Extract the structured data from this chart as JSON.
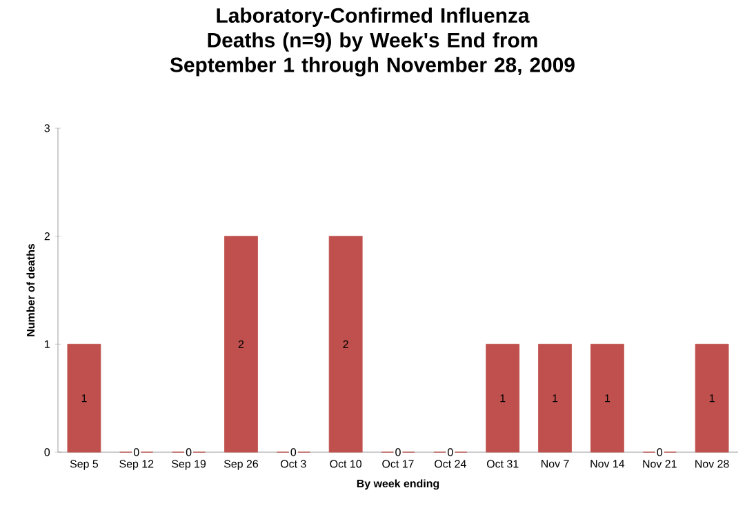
{
  "chart_data": {
    "type": "bar",
    "title": "Laboratory-Confirmed Influenza Deaths (n=9) by Week's End from September 1 through November 28, 2009",
    "xlabel": "By week ending",
    "ylabel": "Number of deaths",
    "categories": [
      "Sep 5",
      "Sep 12",
      "Sep 19",
      "Sep 26",
      "Oct 3",
      "Oct 10",
      "Oct 17",
      "Oct 24",
      "Oct 31",
      "Nov 7",
      "Nov 14",
      "Nov 21",
      "Nov 28"
    ],
    "values": [
      1,
      0,
      0,
      2,
      0,
      2,
      0,
      0,
      1,
      1,
      1,
      0,
      1
    ],
    "color": "#c0504d",
    "ylim": [
      0,
      3
    ],
    "yticks": [
      0,
      1,
      2,
      3
    ],
    "data_labels": true,
    "grid": false
  }
}
